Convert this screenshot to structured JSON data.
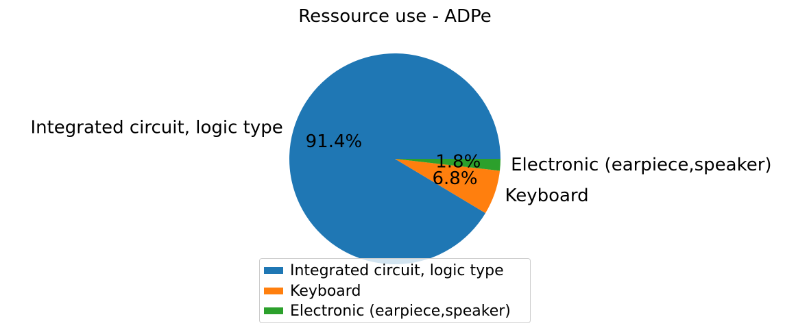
{
  "chart_data": {
    "type": "pie",
    "title": "Ressource use - ADPe",
    "categories": [
      "Integrated circuit,  logic type",
      "Keyboard",
      "Electronic (earpiece,speaker)"
    ],
    "values": [
      91.4,
      6.8,
      1.8
    ],
    "value_labels": [
      "91.4%",
      "6.8%",
      "1.8%"
    ],
    "colors": [
      "#1f77b4",
      "#ff7f0e",
      "#2ca02c"
    ],
    "start_angle_deg": 0,
    "direction": "counterclockwise",
    "legend": {
      "placement": "bottom-center",
      "entries": [
        "Integrated circuit,  logic type",
        "Keyboard",
        "Electronic (earpiece,speaker)"
      ]
    }
  }
}
